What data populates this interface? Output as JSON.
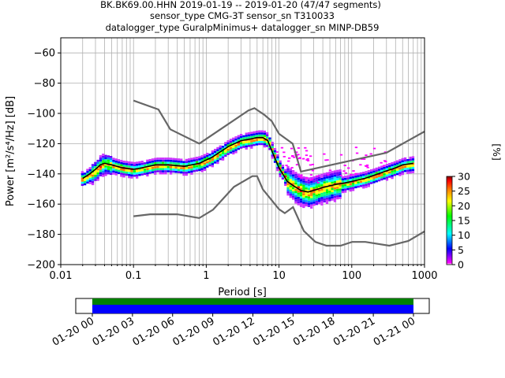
{
  "title_lines": [
    "BK.BK69.00.HHN   2019-01-19 -- 2019-01-20  (47/47 segments)",
    "sensor_type CMG-3T sensor_sn T310033",
    "datalogger_type GuralpMinimus+ datalogger_sn MINP-DB59"
  ],
  "chart_data": {
    "type": "heatmap",
    "xlabel": "Period [s]",
    "ylabel": "Power [m²/s⁴/Hz] [dB]",
    "x_scale": "log",
    "xlim": [
      0.01,
      1000
    ],
    "ylim": [
      -200,
      -50
    ],
    "grid": true,
    "x_tick_labels": [
      "0.01",
      "0.1",
      "1",
      "10",
      "100",
      "1000"
    ],
    "y_ticks": [
      -60,
      -80,
      -100,
      -120,
      -140,
      -160,
      -180,
      -200
    ],
    "x_ticks": [
      0.01,
      0.1,
      1,
      10,
      100,
      1000
    ],
    "mode_curve": {
      "name": "mode",
      "x": [
        0.02,
        0.025,
        0.03,
        0.035,
        0.04,
        0.05,
        0.07,
        0.1,
        0.13,
        0.2,
        0.3,
        0.5,
        0.8,
        1.2,
        2,
        3,
        4,
        5,
        6,
        7,
        8,
        10,
        13,
        16,
        20,
        25,
        30,
        40,
        60,
        80,
        100,
        150,
        200,
        300,
        400,
        500,
        700
      ],
      "y": [
        -143,
        -140,
        -137,
        -134,
        -133,
        -134,
        -136,
        -137,
        -136,
        -134,
        -134,
        -135,
        -133,
        -129,
        -122,
        -118,
        -117,
        -116,
        -116,
        -118,
        -125,
        -136,
        -145,
        -148,
        -151,
        -152,
        -151,
        -149,
        -147,
        -146,
        -145,
        -143,
        -141,
        -138,
        -136,
        -134,
        -133
      ]
    },
    "reference_curves": [
      {
        "name": "upper",
        "x": [
          0.1,
          0.22,
          0.32,
          0.8,
          3.8,
          4.6,
          6.3,
          7.9,
          10,
          15.4,
          20,
          300,
          1000
        ],
        "y": [
          -91.5,
          -97.4,
          -110.5,
          -120,
          -98,
          -96.5,
          -101,
          -105,
          -113.5,
          -120,
          -138.5,
          -126,
          -112
        ]
      },
      {
        "name": "lower",
        "x": [
          0.1,
          0.17,
          0.4,
          0.8,
          1.24,
          2.4,
          4.3,
          5,
          6,
          10,
          12,
          15.6,
          21.9,
          31.6,
          45,
          70,
          101,
          154,
          328,
          600,
          1000
        ],
        "y": [
          -168,
          -166.7,
          -166.7,
          -169.2,
          -163.7,
          -148.6,
          -141.5,
          -141.5,
          -150.2,
          -163.4,
          -166,
          -162,
          -177.7,
          -185,
          -187.5,
          -187.5,
          -185,
          -185,
          -187.5,
          -184.4,
          -178
        ]
      }
    ],
    "colorbar": {
      "label": "[%]",
      "range": [
        0,
        30
      ],
      "ticks": [
        0,
        5,
        10,
        15,
        20,
        25,
        30
      ],
      "colormap": [
        "#ffffff",
        "#ff00ff",
        "#0000ff",
        "#00ffff",
        "#00ff00",
        "#ffff00",
        "#ff7f00",
        "#ff0000",
        "#7f0000"
      ]
    },
    "timeline": {
      "tick_labels": [
        "01-20 00",
        "01-20 03",
        "01-20 06",
        "01-20 09",
        "01-20 12",
        "01-20 15",
        "01-20 18",
        "01-20 21",
        "01-21 00"
      ],
      "bars": [
        {
          "name": "data-availability",
          "color": "#008000"
        },
        {
          "name": "gaps-coverage",
          "color": "#0000ff"
        }
      ]
    }
  }
}
